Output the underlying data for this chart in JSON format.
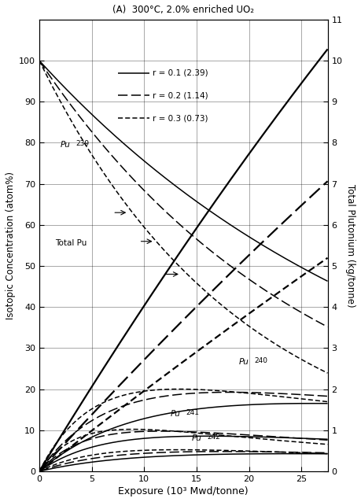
{
  "title": "(A)  300°C, 2.0% enriched UO₂",
  "xlabel": "Exposure (10³ Mwd/tonne)",
  "ylabel_left": "Isotopic Concentration (atom%)",
  "ylabel_right": "Total Plutonium (kg/tonne)",
  "xlim": [
    0,
    27.5
  ],
  "ylim_left": [
    0,
    110
  ],
  "ylim_right": [
    0,
    11
  ],
  "xticks": [
    0,
    5,
    10,
    15,
    20,
    25
  ],
  "yticks_left": [
    0,
    10,
    20,
    30,
    40,
    50,
    60,
    70,
    80,
    90,
    100
  ],
  "yticks_right": [
    0,
    1,
    2,
    3,
    4,
    5,
    6,
    7,
    8,
    9,
    10,
    11
  ],
  "background": "#ffffff"
}
